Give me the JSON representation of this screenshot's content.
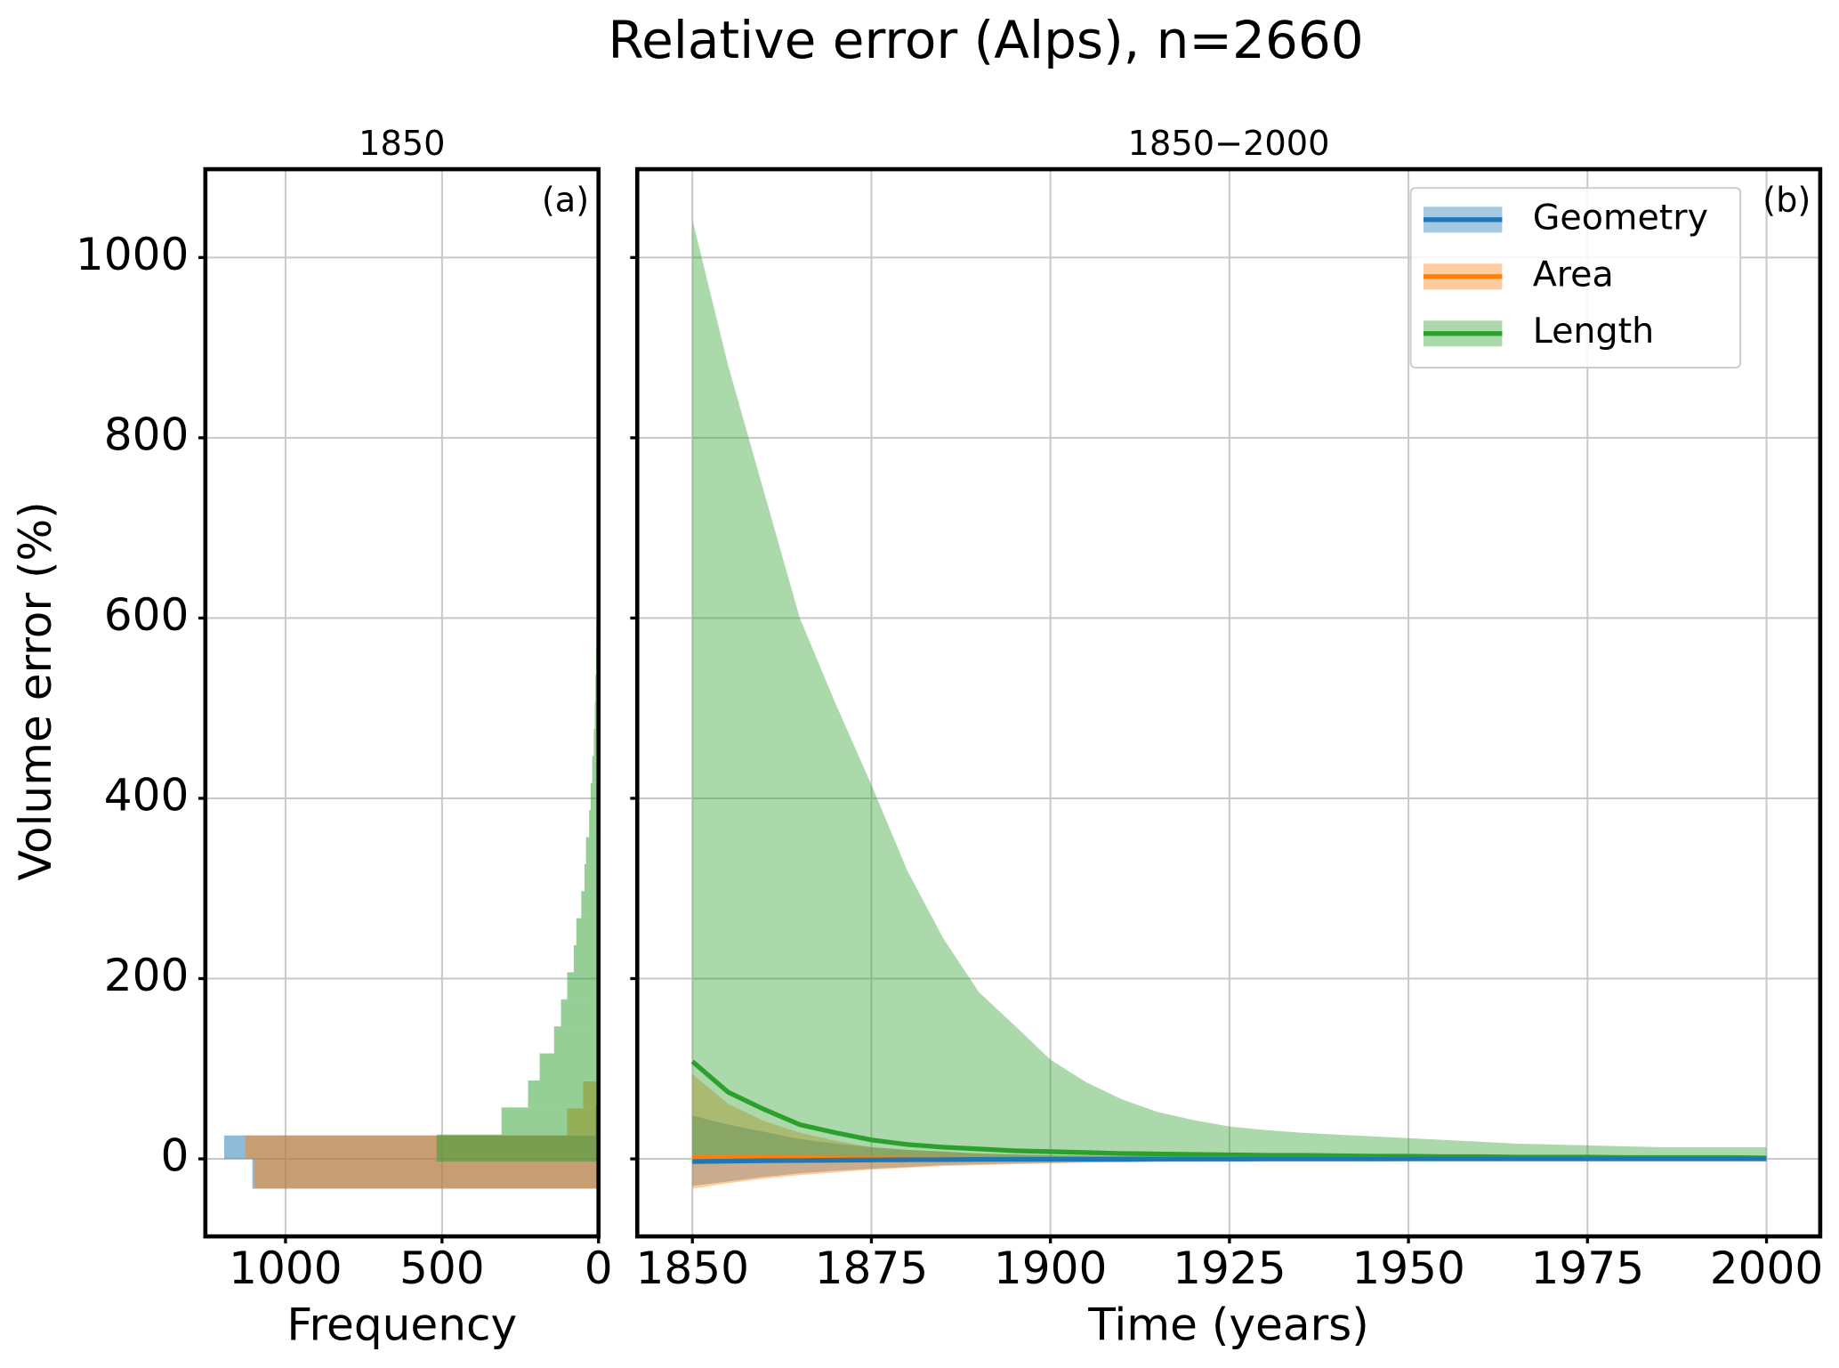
{
  "title": "Relative error (Alps), n=2660",
  "chart_data": [
    {
      "type": "histogram",
      "orientation": "horizontal",
      "title": "1850",
      "panel_label": "(a)",
      "xlabel": "Frequency",
      "ylabel": "Volume error (%)",
      "xlim": [
        1256,
        0
      ],
      "xticks": [
        1000,
        500,
        0
      ],
      "ylim": [
        -86,
        1098
      ],
      "yticks": [
        0,
        200,
        400,
        600,
        800,
        1000
      ],
      "grid": true,
      "series": [
        {
          "color": "#1f77b4",
          "bins": [
            -33,
            0,
            26,
            59
          ],
          "values": [
            1106,
            1196,
            10
          ]
        },
        {
          "color": "#ff7f0e",
          "bins": [
            -33,
            0,
            26,
            56,
            86
          ],
          "values": [
            1099,
            1129,
            101,
            49
          ]
        },
        {
          "color": "#2ca02c",
          "bins": [
            -3,
            27,
            57,
            87,
            117,
            147,
            177,
            207,
            237,
            267,
            297,
            327,
            357,
            387,
            417,
            447,
            477,
            507,
            537,
            567,
            597,
            627,
            657,
            687,
            717,
            747,
            777,
            807,
            837
          ],
          "values": [
            517,
            310,
            225,
            188,
            142,
            120,
            100,
            79,
            71,
            55,
            45,
            40,
            30,
            25,
            20,
            15,
            12,
            10,
            8,
            7,
            6,
            5,
            4,
            3,
            3,
            2,
            2,
            1
          ]
        }
      ]
    },
    {
      "type": "line",
      "title": "1850−2000",
      "panel_label": "(b)",
      "xlabel": "Time (years)",
      "x": [
        1850,
        1855,
        1860,
        1865,
        1870,
        1875,
        1880,
        1885,
        1890,
        1895,
        1900,
        1905,
        1910,
        1915,
        1920,
        1925,
        1930,
        1935,
        1940,
        1945,
        1950,
        1955,
        1960,
        1965,
        1970,
        1975,
        1980,
        1985,
        1990,
        1995,
        2000
      ],
      "xlim": [
        1842.3,
        2007.5
      ],
      "xticks": [
        1850,
        1875,
        1900,
        1925,
        1950,
        1975,
        2000
      ],
      "ylim": [
        -86,
        1098
      ],
      "yticks": [
        0,
        200,
        400,
        600,
        800,
        1000
      ],
      "grid": true,
      "legend": "upper right",
      "series": [
        {
          "name": "Geometry",
          "color": "#1f77b4",
          "values": [
            -3,
            -2.5,
            -2,
            -1.8,
            -1.5,
            -1.2,
            -1,
            -0.8,
            -0.6,
            -0.5,
            -0.4,
            -0.3,
            -0.3,
            -0.2,
            -0.2,
            -0.2,
            -0.1,
            -0.1,
            -0.1,
            -0.1,
            0,
            0,
            0,
            0,
            0,
            0,
            0,
            0,
            0,
            0,
            0
          ],
          "lower": [
            -30,
            -25,
            -20,
            -16,
            -13,
            -11,
            -9,
            -7,
            -6,
            -5,
            -4.5,
            -4,
            -3.5,
            -3,
            -2.5,
            -2,
            -2,
            -1.5,
            -1.5,
            -1,
            -1,
            -1,
            -1,
            -0.5,
            -0.5,
            -0.5,
            -0.5,
            -0.5,
            -0.5,
            -0.5,
            -0.5
          ],
          "upper": [
            48,
            38,
            30,
            22,
            17,
            13,
            10,
            8,
            6,
            5,
            4,
            3.5,
            3,
            2.5,
            2,
            2,
            1.5,
            1.5,
            1.5,
            1,
            1,
            1,
            1,
            1,
            1,
            0.5,
            0.5,
            0.5,
            0.5,
            0.5,
            0.5
          ]
        },
        {
          "name": "Area",
          "color": "#ff7f0e",
          "values": [
            2,
            1.8,
            1.5,
            1.2,
            1,
            0.8,
            0.7,
            0.6,
            0.5,
            0.4,
            0.3,
            0.3,
            0.2,
            0.2,
            0.2,
            0.1,
            0.1,
            0.1,
            0.1,
            0.1,
            0,
            0,
            0,
            0,
            0,
            0,
            0,
            0,
            0,
            0,
            0
          ],
          "lower": [
            -33,
            -27,
            -22,
            -18,
            -15,
            -12,
            -10,
            -8,
            -7,
            -6,
            -5,
            -4,
            -4,
            -3,
            -3,
            -2.5,
            -2,
            -2,
            -2,
            -1.5,
            -1.5,
            -1,
            -1,
            -1,
            -1,
            -1,
            -0.5,
            -0.5,
            -0.5,
            -0.5,
            -0.5
          ],
          "upper": [
            94,
            61,
            42,
            29,
            20,
            13,
            10,
            8,
            6,
            5,
            4,
            3.5,
            3,
            3,
            2.5,
            2.5,
            2,
            2,
            2,
            1.5,
            1.5,
            1.5,
            1,
            1,
            1,
            1,
            1,
            1,
            1,
            1,
            1
          ]
        },
        {
          "name": "Length",
          "color": "#2ca02c",
          "values": [
            108,
            74,
            55,
            38,
            29,
            21,
            16,
            13,
            11,
            9,
            8,
            7,
            6,
            5.5,
            5,
            4.5,
            4,
            4,
            3.5,
            3,
            3,
            2.5,
            2.5,
            2,
            2,
            2,
            1.5,
            1.5,
            1.5,
            1.5,
            1
          ],
          "lower": [
            -5,
            -4,
            -3,
            -2.5,
            -2,
            -1.5,
            -1,
            -1,
            -1,
            -0.5,
            -0.5,
            -0.5,
            -0.5,
            -0.5,
            0,
            0,
            0,
            0,
            0,
            0,
            0,
            0,
            0,
            0,
            0,
            0,
            0,
            0,
            0,
            0,
            0
          ],
          "upper": [
            1042,
            880,
            740,
            600,
            505,
            415,
            320,
            245,
            185,
            148,
            110,
            85,
            66,
            52,
            43,
            36,
            32,
            29,
            27,
            25,
            23,
            21,
            19,
            17,
            16,
            15,
            14,
            13,
            13,
            13,
            13
          ]
        }
      ]
    }
  ]
}
